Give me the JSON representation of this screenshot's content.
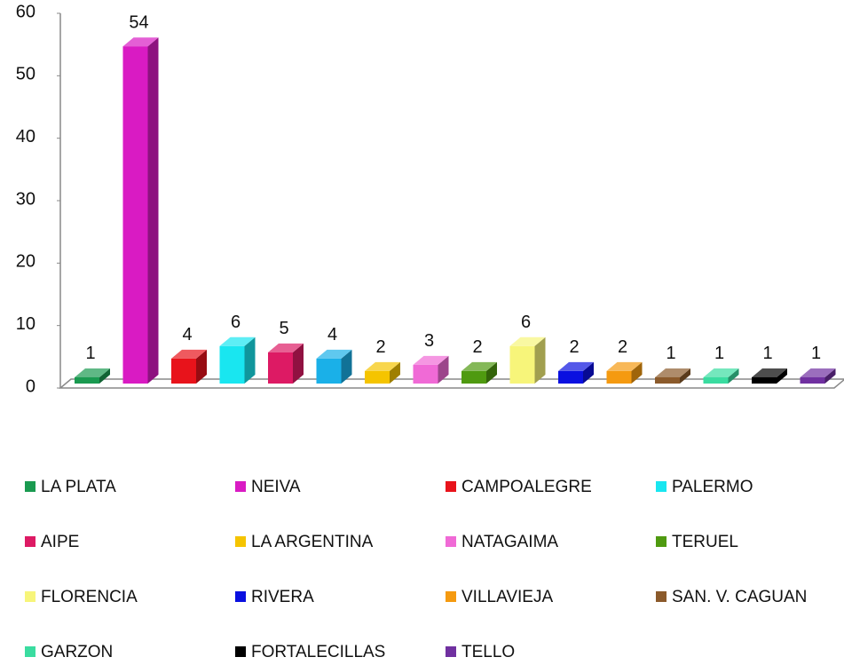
{
  "chart_data": {
    "type": "bar3d",
    "ylim": [
      0,
      60
    ],
    "yticks": [
      0,
      10,
      20,
      30,
      40,
      50,
      60
    ],
    "series": [
      {
        "name": "LA PLATA",
        "color": "#1a9a50",
        "values": [
          1
        ]
      },
      {
        "name": "NEIVA",
        "color": "#d91bc3",
        "values": [
          54
        ]
      },
      {
        "name": "CAMPOALEGRE",
        "color": "#e8131b",
        "values": [
          4
        ]
      },
      {
        "name": "PALERMO",
        "color": "#19e6f0",
        "values": [
          6
        ]
      },
      {
        "name": "AIPE",
        "color": "#dd1a64",
        "values": [
          5
        ]
      },
      {
        "name": null,
        "color": "#1ab0e8",
        "values": [
          4
        ]
      },
      {
        "name": "LA ARGENTINA",
        "color": "#f5c400",
        "values": [
          2
        ]
      },
      {
        "name": "NATAGAIMA",
        "color": "#f06ad6",
        "values": [
          3
        ]
      },
      {
        "name": "TERUEL",
        "color": "#4f9a10",
        "values": [
          2
        ]
      },
      {
        "name": "FLORENCIA",
        "color": "#f7f57a",
        "values": [
          6
        ]
      },
      {
        "name": "RIVERA",
        "color": "#0a10e0",
        "values": [
          2
        ]
      },
      {
        "name": "VILLAVIEJA",
        "color": "#f59a10",
        "values": [
          2
        ]
      },
      {
        "name": "SAN. V. CAGUAN",
        "color": "#8b5a2b",
        "values": [
          1
        ]
      },
      {
        "name": "GARZON",
        "color": "#3adca0",
        "values": [
          1
        ]
      },
      {
        "name": "FORTALECILLAS",
        "color": "#000000",
        "values": [
          1
        ]
      },
      {
        "name": "TELLO",
        "color": "#7030a0",
        "values": [
          1
        ]
      }
    ]
  }
}
